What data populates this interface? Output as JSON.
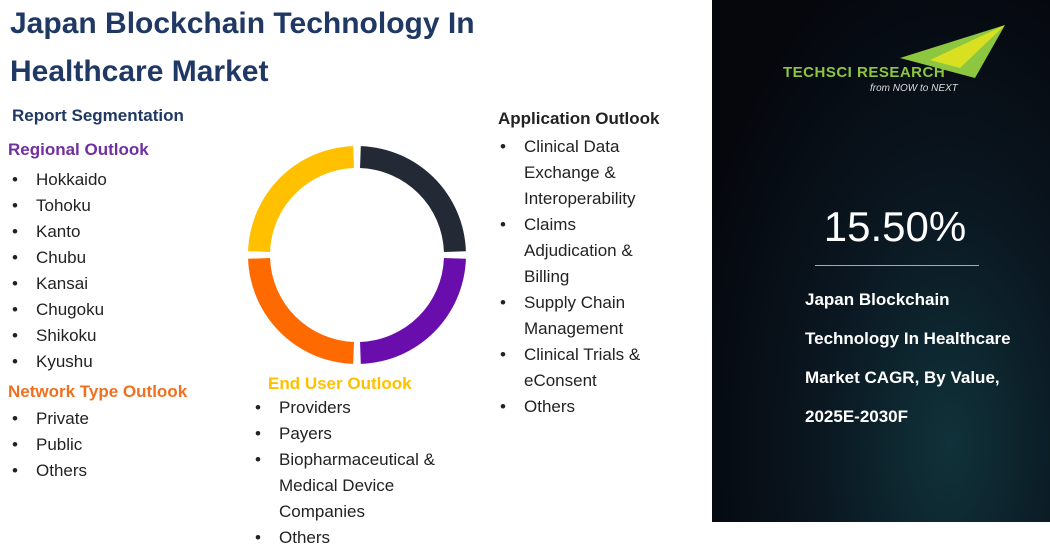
{
  "header": {
    "title": "Japan Blockchain Technology In Healthcare Market"
  },
  "segmentation": {
    "heading": "Report Segmentation",
    "sections": [
      {
        "title": "Regional Outlook",
        "items": [
          "Hokkaido",
          "Tohoku",
          "Kanto",
          "Chubu",
          "Kansai",
          "Chugoku",
          "Shikoku",
          "Kyushu"
        ]
      },
      {
        "title": "Network Type Outlook",
        "items": [
          "Private",
          "Public",
          "Others"
        ]
      },
      {
        "title": "End User Outlook",
        "items": [
          "Providers",
          "Payers",
          "Biopharmaceutical & Medical Device Companies",
          "Others"
        ]
      },
      {
        "title": "Application Outlook",
        "items": [
          "Clinical Data Exchange & Interoperability",
          "Claims Adjudication & Billing",
          "Supply Chain Management",
          "Clinical Trials & eConsent",
          "Others"
        ]
      }
    ]
  },
  "brand": {
    "name": "TECHSCI RESEARCH",
    "tagline": "from NOW to NEXT"
  },
  "highlight": {
    "value": "15.50%",
    "caption": "Japan Blockchain Technology In Healthcare  Market CAGR, By Value, 2025E-2030F"
  }
}
